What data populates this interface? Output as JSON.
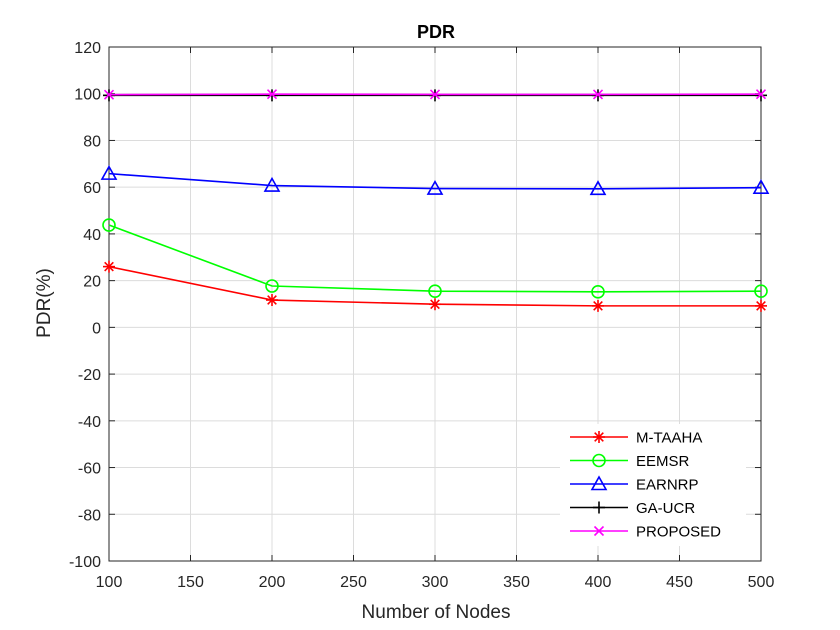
{
  "chart_data": {
    "type": "line",
    "title": "PDR",
    "xlabel": "Number of Nodes",
    "ylabel": "PDR(%)",
    "xlim": [
      100,
      500
    ],
    "ylim": [
      -100,
      120
    ],
    "xticks": [
      100,
      150,
      200,
      250,
      300,
      350,
      400,
      450,
      500
    ],
    "yticks": [
      -100,
      -80,
      -60,
      -40,
      -20,
      0,
      20,
      40,
      60,
      80,
      100,
      120
    ],
    "grid": true,
    "legend_position": "bottom-right",
    "x": [
      100,
      200,
      300,
      400,
      500
    ],
    "series": [
      {
        "name": "M-TAAHA",
        "values": [
          26,
          11.7,
          9.9,
          9.2,
          9.2
        ],
        "color": "#ff0000",
        "marker": "asterisk"
      },
      {
        "name": "EEMSR",
        "values": [
          43.8,
          17.7,
          15.5,
          15.2,
          15.5
        ],
        "color": "#00ff00",
        "marker": "circle"
      },
      {
        "name": "EARNRP",
        "values": [
          65.8,
          60.7,
          59.4,
          59.3,
          59.8
        ],
        "color": "#0000ff",
        "marker": "triangle"
      },
      {
        "name": "GA-UCR",
        "values": [
          99.3,
          99.3,
          99.3,
          99.3,
          99.3
        ],
        "color": "#000000",
        "marker": "plus"
      },
      {
        "name": "PROPOSED",
        "values": [
          99.6,
          99.8,
          99.7,
          99.7,
          99.8
        ],
        "color": "#ff00ff",
        "marker": "x"
      }
    ]
  }
}
